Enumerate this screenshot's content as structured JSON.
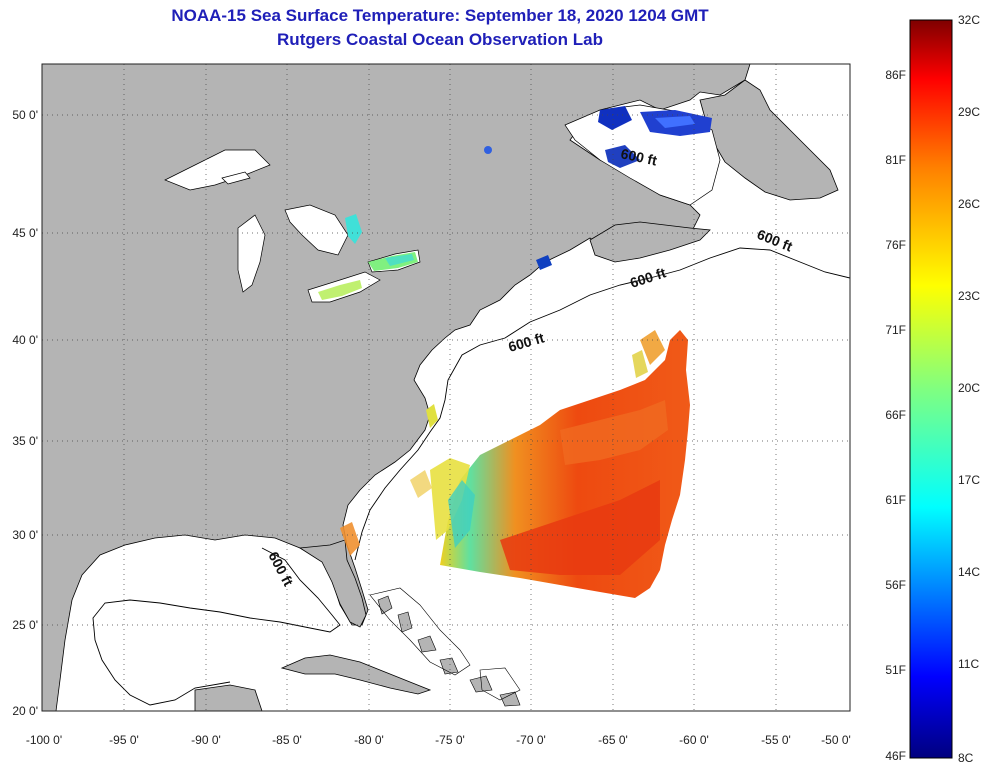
{
  "title": {
    "line1": "NOAA-15 Sea Surface Temperature:  September 18, 2020 1204 GMT",
    "line2": "Rutgers Coastal Ocean Observation Lab"
  },
  "axes": {
    "lon_ticks": [
      "-100 0'",
      "-95 0'",
      "-90 0'",
      "-85 0'",
      "-80 0'",
      "-75 0'",
      "-70 0'",
      "-65 0'",
      "-60 0'",
      "-55 0'",
      "-50 0'"
    ],
    "lat_ticks": [
      "50 0'",
      "45 0'",
      "40 0'",
      "35 0'",
      "30 0'",
      "25 0'",
      "20 0'"
    ]
  },
  "contour_label": "600 ft",
  "colorbar": {
    "celsius": [
      "32C",
      "29C",
      "26C",
      "23C",
      "20C",
      "17C",
      "14C",
      "11C",
      "8C"
    ],
    "fahrenheit": [
      "86F",
      "81F",
      "76F",
      "71F",
      "66F",
      "61F",
      "56F",
      "51F",
      "46F"
    ],
    "colors": [
      "#00007f",
      "#0000ff",
      "#0080ff",
      "#00ffff",
      "#80ff80",
      "#ffff00",
      "#ff8000",
      "#ff0000",
      "#7f0000"
    ]
  }
}
